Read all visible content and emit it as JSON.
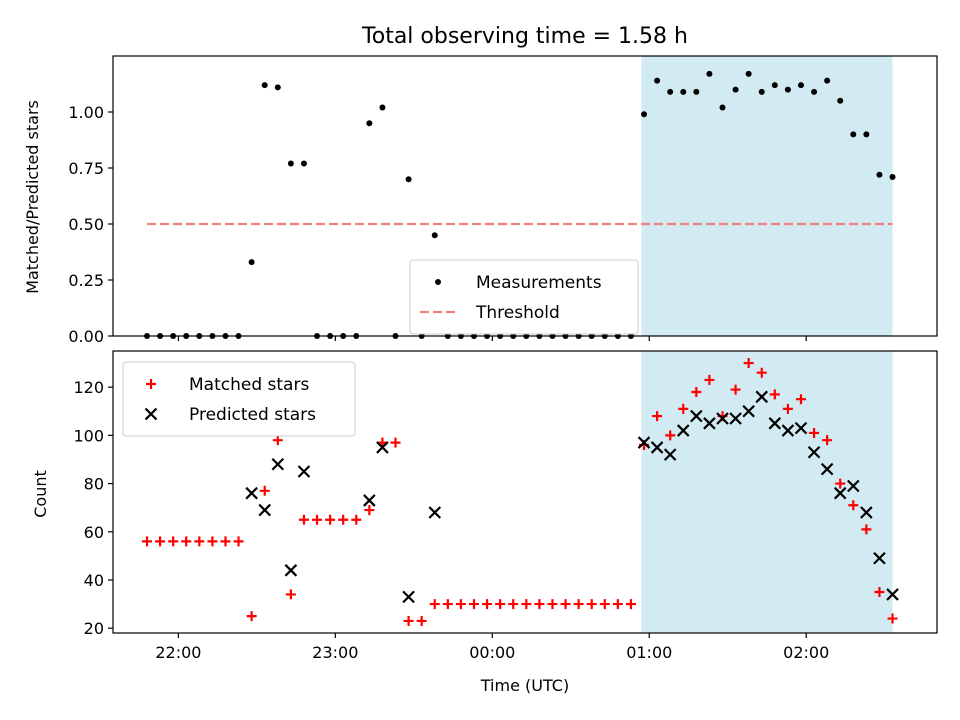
{
  "chart_data": [
    {
      "type": "scatter",
      "title": "Total observing time = 1.58 h",
      "xlabel": "",
      "ylabel": "Matched/Predicted stars",
      "xlim": [
        "21:35",
        "02:50"
      ],
      "ylim": [
        0,
        1.25
      ],
      "yticks": [
        "0.00",
        "0.25",
        "0.50",
        "0.75",
        "1.00"
      ],
      "highlight_range": [
        "00:57",
        "02:33"
      ],
      "grid": false,
      "legend_position": "lower-center",
      "series": [
        {
          "name": "Measurements",
          "marker": "dot",
          "color": "#000000",
          "points": [
            [
              "21:48",
              0.0
            ],
            [
              "21:53",
              0.0
            ],
            [
              "21:58",
              0.0
            ],
            [
              "22:03",
              0.0
            ],
            [
              "22:08",
              0.0
            ],
            [
              "22:13",
              0.0
            ],
            [
              "22:18",
              0.0
            ],
            [
              "22:23",
              0.0
            ],
            [
              "22:28",
              0.33
            ],
            [
              "22:33",
              1.12
            ],
            [
              "22:38",
              1.11
            ],
            [
              "22:43",
              0.77
            ],
            [
              "22:48",
              0.77
            ],
            [
              "22:53",
              0.0
            ],
            [
              "22:58",
              0.0
            ],
            [
              "23:03",
              0.0
            ],
            [
              "23:08",
              0.0
            ],
            [
              "23:13",
              0.95
            ],
            [
              "23:18",
              1.02
            ],
            [
              "23:23",
              0.0
            ],
            [
              "23:28",
              0.7
            ],
            [
              "23:33",
              0.0
            ],
            [
              "23:38",
              0.45
            ],
            [
              "23:43",
              0.0
            ],
            [
              "23:48",
              0.0
            ],
            [
              "23:53",
              0.0
            ],
            [
              "23:58",
              0.0
            ],
            [
              "00:03",
              0.0
            ],
            [
              "00:08",
              0.0
            ],
            [
              "00:13",
              0.0
            ],
            [
              "00:18",
              0.0
            ],
            [
              "00:23",
              0.0
            ],
            [
              "00:28",
              0.0
            ],
            [
              "00:33",
              0.0
            ],
            [
              "00:38",
              0.0
            ],
            [
              "00:43",
              0.0
            ],
            [
              "00:48",
              0.0
            ],
            [
              "00:53",
              0.0
            ],
            [
              "00:58",
              0.99
            ],
            [
              "01:03",
              1.14
            ],
            [
              "01:08",
              1.09
            ],
            [
              "01:13",
              1.09
            ],
            [
              "01:18",
              1.09
            ],
            [
              "01:23",
              1.17
            ],
            [
              "01:28",
              1.02
            ],
            [
              "01:33",
              1.1
            ],
            [
              "01:38",
              1.17
            ],
            [
              "01:43",
              1.09
            ],
            [
              "01:48",
              1.12
            ],
            [
              "01:53",
              1.1
            ],
            [
              "01:58",
              1.12
            ],
            [
              "02:03",
              1.09
            ],
            [
              "02:08",
              1.14
            ],
            [
              "02:13",
              1.05
            ],
            [
              "02:18",
              0.9
            ],
            [
              "02:23",
              0.9
            ],
            [
              "02:28",
              0.72
            ],
            [
              "02:33",
              0.71
            ]
          ]
        },
        {
          "name": "Threshold",
          "marker": "dashed-line",
          "color": "#f08080",
          "points": [
            [
              "21:48",
              0.5
            ],
            [
              "02:33",
              0.5
            ]
          ]
        }
      ]
    },
    {
      "type": "scatter",
      "title": "",
      "xlabel": "Time (UTC)",
      "ylabel": "Count",
      "xlim": [
        "21:35",
        "02:50"
      ],
      "ylim": [
        18,
        135
      ],
      "xticks": [
        "22:00",
        "23:00",
        "00:00",
        "01:00",
        "02:00"
      ],
      "yticks": [
        "20",
        "40",
        "60",
        "80",
        "100",
        "120"
      ],
      "highlight_range": [
        "00:57",
        "02:33"
      ],
      "grid": false,
      "legend_position": "upper-left",
      "series": [
        {
          "name": "Matched stars",
          "marker": "plus",
          "color": "#ff0000",
          "points": [
            [
              "21:48",
              56
            ],
            [
              "21:53",
              56
            ],
            [
              "21:58",
              56
            ],
            [
              "22:03",
              56
            ],
            [
              "22:08",
              56
            ],
            [
              "22:13",
              56
            ],
            [
              "22:18",
              56
            ],
            [
              "22:23",
              56
            ],
            [
              "22:28",
              25
            ],
            [
              "22:33",
              77
            ],
            [
              "22:38",
              98
            ],
            [
              "22:43",
              34
            ],
            [
              "22:48",
              65
            ],
            [
              "22:53",
              65
            ],
            [
              "22:58",
              65
            ],
            [
              "23:03",
              65
            ],
            [
              "23:08",
              65
            ],
            [
              "23:13",
              69
            ],
            [
              "23:18",
              97
            ],
            [
              "23:23",
              97
            ],
            [
              "23:28",
              23
            ],
            [
              "23:33",
              23
            ],
            [
              "23:38",
              30
            ],
            [
              "23:43",
              30
            ],
            [
              "23:48",
              30
            ],
            [
              "23:53",
              30
            ],
            [
              "23:58",
              30
            ],
            [
              "00:03",
              30
            ],
            [
              "00:08",
              30
            ],
            [
              "00:13",
              30
            ],
            [
              "00:18",
              30
            ],
            [
              "00:23",
              30
            ],
            [
              "00:28",
              30
            ],
            [
              "00:33",
              30
            ],
            [
              "00:38",
              30
            ],
            [
              "00:43",
              30
            ],
            [
              "00:48",
              30
            ],
            [
              "00:53",
              30
            ],
            [
              "00:58",
              96
            ],
            [
              "01:03",
              108
            ],
            [
              "01:08",
              100
            ],
            [
              "01:13",
              111
            ],
            [
              "01:18",
              118
            ],
            [
              "01:23",
              123
            ],
            [
              "01:28",
              108
            ],
            [
              "01:33",
              119
            ],
            [
              "01:38",
              130
            ],
            [
              "01:43",
              126
            ],
            [
              "01:48",
              117
            ],
            [
              "01:53",
              111
            ],
            [
              "01:58",
              115
            ],
            [
              "02:03",
              101
            ],
            [
              "02:08",
              98
            ],
            [
              "02:13",
              80
            ],
            [
              "02:18",
              71
            ],
            [
              "02:23",
              61
            ],
            [
              "02:28",
              35
            ],
            [
              "02:33",
              24
            ]
          ]
        },
        {
          "name": "Predicted stars",
          "marker": "x",
          "color": "#000000",
          "points": [
            [
              "22:28",
              76
            ],
            [
              "22:33",
              69
            ],
            [
              "22:38",
              88
            ],
            [
              "22:43",
              44
            ],
            [
              "22:48",
              85
            ],
            [
              "23:13",
              73
            ],
            [
              "23:18",
              95
            ],
            [
              "23:28",
              33
            ],
            [
              "23:38",
              68
            ],
            [
              "00:58",
              97
            ],
            [
              "01:03",
              95
            ],
            [
              "01:08",
              92
            ],
            [
              "01:13",
              102
            ],
            [
              "01:18",
              108
            ],
            [
              "01:23",
              105
            ],
            [
              "01:28",
              107
            ],
            [
              "01:33",
              107
            ],
            [
              "01:38",
              110
            ],
            [
              "01:43",
              116
            ],
            [
              "01:48",
              105
            ],
            [
              "01:53",
              102
            ],
            [
              "01:58",
              103
            ],
            [
              "02:03",
              93
            ],
            [
              "02:08",
              86
            ],
            [
              "02:13",
              76
            ],
            [
              "02:18",
              79
            ],
            [
              "02:23",
              68
            ],
            [
              "02:28",
              49
            ],
            [
              "02:33",
              34
            ]
          ]
        }
      ]
    }
  ],
  "colors": {
    "highlight": "#add8e6",
    "axes": "#000000"
  }
}
